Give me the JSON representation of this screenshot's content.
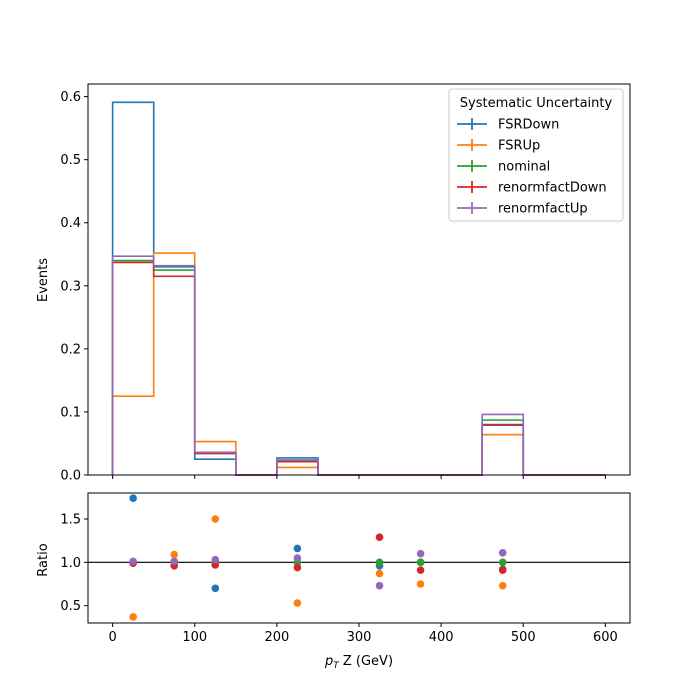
{
  "chart_data": {
    "type": "histogram-step",
    "xlabel_main": "p",
    "xlabel_sub": "T",
    "xlabel_rest": " Z (GeV)",
    "xticks": [
      0,
      100,
      200,
      300,
      400,
      500,
      600
    ],
    "xlim": [
      -30,
      630
    ],
    "bin_edges": [
      0,
      50,
      100,
      150,
      200,
      250,
      300,
      350,
      400,
      450,
      500,
      550,
      600
    ],
    "top": {
      "ylabel": "Events",
      "ylim": [
        0,
        0.62
      ],
      "yticks": [
        "0.0",
        "0.1",
        "0.2",
        "0.3",
        "0.4",
        "0.5",
        "0.6"
      ],
      "yticks_values": [
        0,
        0.1,
        0.2,
        0.3,
        0.4,
        0.5,
        0.6
      ],
      "series": [
        {
          "name": "FSRDown",
          "color": "#1f77b4",
          "values": [
            0.591,
            0.33,
            0.025,
            0,
            0.027,
            0,
            0,
            0,
            0,
            0.08,
            0,
            0
          ]
        },
        {
          "name": "FSRUp",
          "color": "#ff7f0e",
          "values": [
            0.125,
            0.352,
            0.053,
            0,
            0.012,
            0,
            0,
            0,
            0,
            0.064,
            0,
            0
          ]
        },
        {
          "name": "nominal",
          "color": "#2ca02c",
          "values": [
            0.34,
            0.325,
            0.035,
            0,
            0.023,
            0,
            0,
            0,
            0,
            0.087,
            0,
            0
          ]
        },
        {
          "name": "renormfactDown",
          "color": "#d62728",
          "values": [
            0.337,
            0.315,
            0.034,
            0,
            0.021,
            0,
            0,
            0,
            0,
            0.079,
            0,
            0
          ]
        },
        {
          "name": "renormfactUp",
          "color": "#9467bd",
          "values": [
            0.347,
            0.332,
            0.036,
            0,
            0.024,
            0,
            0,
            0,
            0,
            0.096,
            0,
            0
          ]
        }
      ]
    },
    "bottom": {
      "ylabel": "Ratio",
      "ylim": [
        0.3,
        1.8
      ],
      "yticks": [
        "0.5",
        "1.0",
        "1.5"
      ],
      "yticks_values": [
        0.5,
        1.0,
        1.5
      ],
      "reference_line": 1.0,
      "series": [
        {
          "name": "FSRDown",
          "color": "#1f77b4",
          "points": [
            [
              25,
              1.74
            ],
            [
              75,
              1.01
            ],
            [
              125,
              0.7
            ],
            [
              225,
              1.16
            ],
            [
              325,
              0.96
            ],
            [
              375,
              1.0
            ],
            [
              475,
              0.92
            ]
          ]
        },
        {
          "name": "FSRUp",
          "color": "#ff7f0e",
          "points": [
            [
              25,
              0.37
            ],
            [
              75,
              1.09
            ],
            [
              125,
              1.5
            ],
            [
              225,
              0.53
            ],
            [
              325,
              0.87
            ],
            [
              375,
              0.75
            ],
            [
              475,
              0.73
            ]
          ]
        },
        {
          "name": "nominal",
          "color": "#2ca02c",
          "points": [
            [
              25,
              1.0
            ],
            [
              75,
              1.0
            ],
            [
              125,
              1.0
            ],
            [
              225,
              1.0
            ],
            [
              325,
              1.0
            ],
            [
              375,
              1.0
            ],
            [
              475,
              1.0
            ]
          ]
        },
        {
          "name": "renormfactDown",
          "color": "#d62728",
          "points": [
            [
              25,
              0.99
            ],
            [
              75,
              0.96
            ],
            [
              125,
              0.97
            ],
            [
              225,
              0.94
            ],
            [
              325,
              1.29
            ],
            [
              375,
              0.91
            ],
            [
              475,
              0.91
            ]
          ]
        },
        {
          "name": "renormfactUp",
          "color": "#9467bd",
          "points": [
            [
              25,
              1.01
            ],
            [
              75,
              1.01
            ],
            [
              125,
              1.03
            ],
            [
              225,
              1.05
            ],
            [
              325,
              0.73
            ],
            [
              375,
              1.1
            ],
            [
              475,
              1.11
            ]
          ]
        }
      ]
    },
    "legend": {
      "title": "Systematic Uncertainty",
      "placement": "top-right",
      "entries": [
        "FSRDown",
        "FSRUp",
        "nominal",
        "renormfactDown",
        "renormfactUp"
      ]
    },
    "grid": false
  }
}
